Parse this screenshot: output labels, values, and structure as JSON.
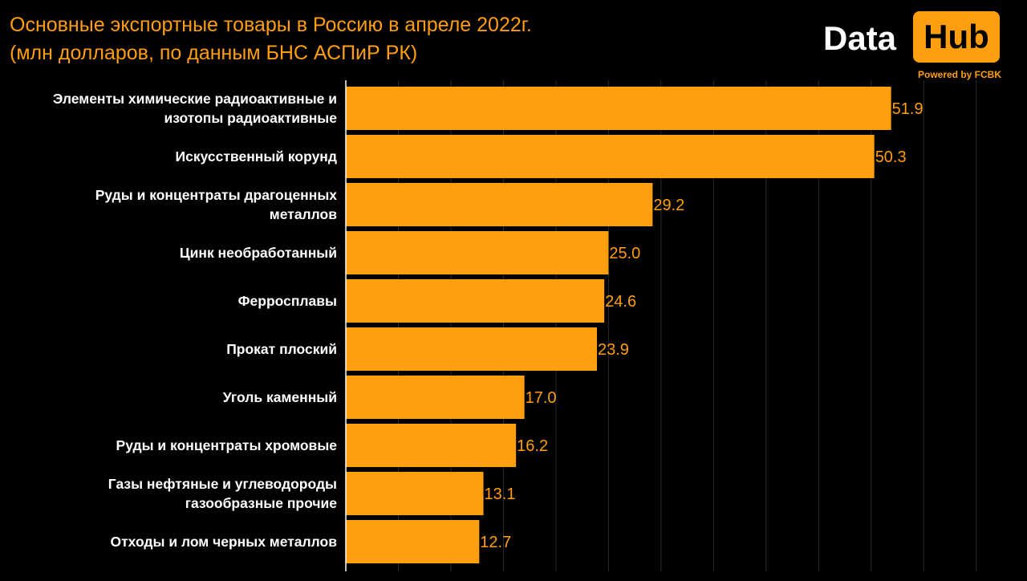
{
  "chart_data": {
    "type": "bar",
    "orientation": "horizontal",
    "title": "Основные экспортные товары в Россию в апреле 2022г.",
    "subtitle": "(млн долларов, по данным БНС АСПиР РК)",
    "categories": [
      [
        "Элементы химические радиоактивные и",
        "изотопы радиоактивные"
      ],
      [
        "Искусственный корунд"
      ],
      [
        "Руды и концентраты драгоценных",
        "металлов"
      ],
      [
        "Цинк необработанный"
      ],
      [
        "Ферросплавы"
      ],
      [
        "Прокат плоский"
      ],
      [
        "Уголь каменный"
      ],
      [
        "Руды и концентраты хромовые"
      ],
      [
        "Газы нефтяные и углеводороды",
        "газообразные прочие"
      ],
      [
        "Отходы и лом черных металлов"
      ]
    ],
    "values": [
      51.9,
      50.3,
      29.2,
      25.0,
      24.6,
      23.9,
      17.0,
      16.2,
      13.1,
      12.7
    ],
    "value_labels": [
      "51.9",
      "50.3",
      "29.2",
      "25.0",
      "24.6",
      "23.9",
      "17.0",
      "16.2",
      "13.1",
      "12.7"
    ],
    "xlim": [
      0,
      63
    ],
    "grid": true,
    "bar_color": "#ff9e0f",
    "label_color": "#ff9e0f",
    "background": "#000000"
  },
  "logo": {
    "word1": "Data",
    "word2": "Hub",
    "tagline": "Powered by FCBK",
    "accent": "#ff9e0f"
  }
}
